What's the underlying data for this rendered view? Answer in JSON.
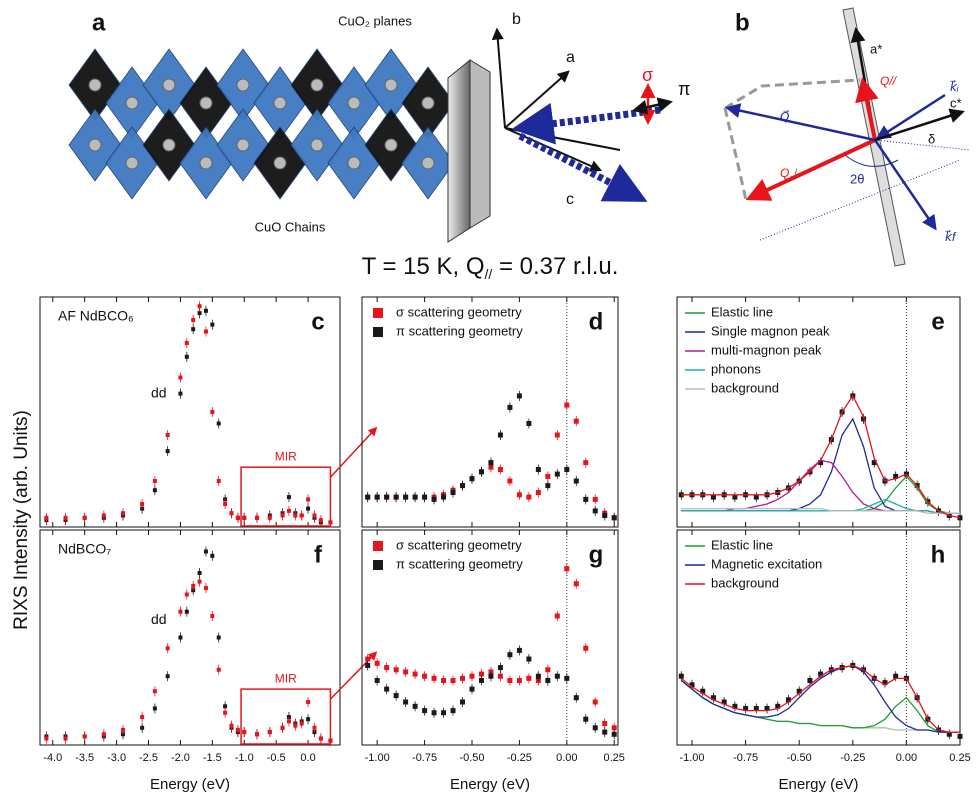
{
  "figure": {
    "title_parts": [
      "T = 15 K,   Q",
      "//",
      " = 0.37 r.l.u."
    ],
    "y_label": "RIXS Intensity (arb. Units)"
  },
  "diagram_a": {
    "panel_label": "a",
    "labels": {
      "planes": "CuO₂ planes",
      "chains": "CuO Chains",
      "b": "b",
      "a": "a",
      "c": "c",
      "sigma": "σ",
      "pi": "π"
    }
  },
  "diagram_b": {
    "panel_label": "b",
    "labels": {
      "a_star": "a*",
      "q_par": "Q//",
      "q_perp": "Q⊥",
      "q": "Q⃗",
      "k_i": "k⃗ᵢ",
      "k_f": "k⃗f",
      "c_star": "c*",
      "delta": "δ",
      "two_theta": "2θ"
    }
  },
  "chart_data": [
    {
      "type": "line",
      "panel_label": "c",
      "label_text": "AF NdBCO₆",
      "peak_label": "dd",
      "box_label": "MIR",
      "xlim": [
        -4.2,
        0.5
      ],
      "xticks": [
        -4,
        -3.5,
        -3,
        -2.5,
        -2,
        -1.5,
        -1,
        -0.5,
        0
      ],
      "tick_labels": false,
      "ylim": [
        0,
        100
      ],
      "zero_line": false,
      "x": [
        -4.1,
        -3.8,
        -3.5,
        -3.2,
        -2.9,
        -2.6,
        -2.4,
        -2.2,
        -2.0,
        -1.9,
        -1.8,
        -1.7,
        -1.6,
        -1.5,
        -1.4,
        -1.3,
        -1.2,
        -1.1,
        -1.0,
        -0.8,
        -0.6,
        -0.4,
        -0.3,
        -0.2,
        -0.1,
        0.0,
        0.1,
        0.2,
        0.35
      ],
      "series": [
        {
          "color": "#1a1a1a",
          "marker": "square",
          "values": [
            3,
            3,
            4,
            4,
            5,
            8,
            16,
            33,
            58,
            74,
            86,
            93,
            94,
            88,
            45,
            12,
            6,
            4,
            4,
            4,
            5,
            6,
            13,
            6,
            5,
            8,
            4,
            2,
            2
          ]
        },
        {
          "color": "#e8141c",
          "marker": "square",
          "values": [
            4,
            4,
            4,
            5,
            6,
            10,
            20,
            40,
            65,
            80,
            90,
            96,
            85,
            50,
            20,
            10,
            6,
            4,
            4,
            4,
            4,
            5,
            7,
            5,
            5,
            12,
            5,
            3,
            2
          ]
        }
      ]
    },
    {
      "type": "line",
      "panel_label": "d",
      "legend": "upper left",
      "xlim": [
        -1.08,
        0.27
      ],
      "xticks": [
        -1,
        -0.75,
        -0.5,
        -0.25,
        0,
        0.25
      ],
      "tick_labels": false,
      "ylim": [
        0,
        100
      ],
      "zero_line": true,
      "x": [
        -1.05,
        -1,
        -0.95,
        -0.9,
        -0.85,
        -0.8,
        -0.75,
        -0.7,
        -0.65,
        -0.6,
        -0.55,
        -0.5,
        -0.45,
        -0.4,
        -0.35,
        -0.3,
        -0.25,
        -0.2,
        -0.15,
        -0.1,
        -0.05,
        0,
        0.05,
        0.1,
        0.15,
        0.2,
        0.25
      ],
      "series": [
        {
          "name": "σ scattering geometry",
          "color": "#e8141c",
          "marker": "square",
          "values": [
            13,
            13,
            13,
            13,
            13,
            13,
            13,
            13,
            14,
            16,
            18,
            21,
            24,
            26,
            25,
            20,
            14,
            13,
            15,
            22,
            40,
            53,
            46,
            28,
            12,
            6,
            4
          ]
        },
        {
          "name": "π scattering geometry",
          "color": "#1a1a1a",
          "marker": "square",
          "values": [
            13,
            13,
            13,
            13,
            13,
            13,
            13,
            12,
            13,
            15,
            18,
            21,
            24,
            28,
            40,
            52,
            57,
            45,
            25,
            18,
            23,
            25,
            20,
            12,
            7,
            5,
            4
          ]
        }
      ]
    },
    {
      "type": "line",
      "panel_label": "e",
      "legend": "upper left",
      "xlim": [
        -1.07,
        0.25
      ],
      "xticks": [
        -1,
        -0.75,
        -0.5,
        -0.25,
        0,
        0.25
      ],
      "tick_labels": false,
      "ylim": [
        0,
        100
      ],
      "zero_line": true,
      "x": [
        -1.05,
        -1,
        -0.95,
        -0.9,
        -0.85,
        -0.8,
        -0.75,
        -0.7,
        -0.65,
        -0.6,
        -0.55,
        -0.5,
        -0.45,
        -0.4,
        -0.35,
        -0.3,
        -0.25,
        -0.2,
        -0.15,
        -0.1,
        -0.05,
        0,
        0.05,
        0.1,
        0.15,
        0.2,
        0.25
      ],
      "series": [
        {
          "color": "#1a1a1a",
          "marker": "square",
          "values": [
            14,
            14,
            14,
            13,
            14,
            13,
            14,
            13,
            14,
            15,
            17,
            20,
            24,
            28,
            38,
            50,
            57,
            47,
            28,
            20,
            22,
            23,
            18,
            11,
            7,
            5,
            4
          ]
        },
        {
          "name": "Elastic line",
          "color": "#1ea032",
          "values": [
            7,
            7,
            7,
            7,
            7,
            7,
            7,
            7,
            7,
            7,
            7,
            7,
            7,
            7,
            7,
            7,
            7,
            7,
            8,
            11,
            17,
            22,
            17,
            10,
            7,
            6,
            6
          ]
        },
        {
          "name": "Single magnon peak",
          "color": "#1f2a9a",
          "values": [
            7,
            7,
            7,
            7,
            7,
            7,
            7,
            7,
            7,
            7,
            7,
            8,
            10,
            14,
            24,
            40,
            47,
            35,
            17,
            9,
            7,
            7,
            7,
            7,
            6,
            6,
            6
          ]
        },
        {
          "name": "multi-magnon peak",
          "color": "#b0189e",
          "values": [
            7,
            7,
            7,
            7,
            7,
            8,
            8,
            9,
            10,
            12,
            15,
            20,
            25,
            29,
            28,
            22,
            15,
            10,
            8,
            7,
            7,
            7,
            7,
            7,
            6,
            6,
            6
          ]
        },
        {
          "name": "phonons",
          "color": "#1fb5a8",
          "values": [
            7,
            7,
            7,
            7,
            7,
            7,
            7,
            7,
            7,
            7,
            7,
            7,
            7,
            7,
            7,
            7,
            7,
            8,
            10,
            12,
            10,
            8,
            7,
            7,
            6,
            6,
            6
          ]
        },
        {
          "name": "background",
          "color": "#bbbbbb",
          "values": [
            8,
            8,
            8,
            8,
            8,
            8,
            8,
            8,
            8,
            8,
            8,
            8,
            8,
            8,
            7,
            7,
            7,
            7,
            7,
            7,
            7,
            7,
            7,
            6,
            6,
            6,
            6
          ]
        },
        {
          "color": "#e8141c",
          "values": [
            14,
            14,
            14,
            14,
            14,
            14,
            14,
            14,
            14,
            15,
            17,
            20,
            24,
            29,
            38,
            50,
            57,
            48,
            30,
            20,
            21,
            23,
            18,
            11,
            7,
            5,
            4
          ]
        }
      ]
    },
    {
      "type": "line",
      "panel_label": "f",
      "label_text": "NdBCO₇",
      "peak_label": "dd",
      "box_label": "MIR",
      "x_label": "Energy (eV)",
      "xlim": [
        -4.2,
        0.5
      ],
      "xticks": [
        {
          "value": -4,
          "label": "-4.0"
        },
        -3.5,
        {
          "value": -3,
          "label": "-3.0"
        },
        -2.5,
        {
          "value": -2,
          "label": "-2.0"
        },
        -1.5,
        {
          "value": -1,
          "label": "-1.0"
        },
        -0.5,
        {
          "value": 0,
          "label": "0.0"
        }
      ],
      "tick_labels": true,
      "ylim": [
        0,
        100
      ],
      "zero_line": false,
      "x": [
        -4.1,
        -3.8,
        -3.5,
        -3.2,
        -2.9,
        -2.6,
        -2.4,
        -2.2,
        -2.0,
        -1.9,
        -1.8,
        -1.7,
        -1.6,
        -1.5,
        -1.4,
        -1.3,
        -1.2,
        -1.1,
        -1.0,
        -0.8,
        -0.6,
        -0.4,
        -0.3,
        -0.2,
        -0.1,
        0.0,
        0.1,
        0.2,
        0.35
      ],
      "series": [
        {
          "color": "#1a1a1a",
          "marker": "square",
          "values": [
            4,
            4,
            4,
            4,
            5,
            8,
            17,
            32,
            50,
            62,
            72,
            80,
            90,
            88,
            50,
            18,
            8,
            6,
            6,
            5,
            6,
            8,
            13,
            10,
            11,
            12,
            6,
            3,
            2
          ]
        },
        {
          "color": "#e8141c",
          "marker": "square",
          "values": [
            3,
            3,
            4,
            5,
            7,
            13,
            25,
            45,
            62,
            70,
            74,
            76,
            73,
            60,
            35,
            15,
            9,
            7,
            6,
            5,
            6,
            8,
            11,
            9,
            10,
            20,
            8,
            3,
            2
          ]
        }
      ]
    },
    {
      "type": "line",
      "panel_label": "g",
      "legend": "upper left",
      "x_label": "Energy (eV)",
      "xlim": [
        -1.08,
        0.27
      ],
      "xticks": [
        {
          "value": -1,
          "label": "-1.00"
        },
        -0.75,
        {
          "value": -0.5,
          "label": "-0.50"
        },
        -0.25,
        {
          "value": 0,
          "label": "0.00"
        },
        0.25
      ],
      "tick_labels": true,
      "ylim": [
        0,
        100
      ],
      "zero_line": true,
      "x": [
        -1.05,
        -1,
        -0.95,
        -0.9,
        -0.85,
        -0.8,
        -0.75,
        -0.7,
        -0.65,
        -0.6,
        -0.55,
        -0.5,
        -0.45,
        -0.4,
        -0.35,
        -0.3,
        -0.25,
        -0.2,
        -0.15,
        -0.1,
        -0.05,
        0,
        0.05,
        0.1,
        0.15,
        0.2,
        0.25
      ],
      "series": [
        {
          "name": "σ scattering geometry",
          "color": "#e8141c",
          "marker": "square",
          "values": [
            40,
            38,
            36,
            35,
            34,
            33,
            32,
            31,
            30,
            30,
            31,
            32,
            33,
            34,
            32,
            30,
            30,
            31,
            30,
            35,
            60,
            82,
            75,
            45,
            20,
            10,
            8
          ]
        },
        {
          "name": "π scattering geometry",
          "color": "#1a1a1a",
          "marker": "square",
          "values": [
            37,
            30,
            26,
            23,
            20,
            18,
            16,
            15,
            15,
            16,
            20,
            26,
            30,
            32,
            36,
            42,
            44,
            40,
            32,
            30,
            32,
            31,
            22,
            12,
            8,
            6,
            5
          ]
        }
      ]
    },
    {
      "type": "line",
      "panel_label": "h",
      "legend": "upper left",
      "x_label": "Energy (eV)",
      "xlim": [
        -1.07,
        0.25
      ],
      "xticks": [
        {
          "value": -1,
          "label": "-1.00"
        },
        -0.75,
        {
          "value": -0.5,
          "label": "-0.50"
        },
        -0.25,
        {
          "value": 0,
          "label": "0.00"
        },
        0.25
      ],
      "tick_labels": true,
      "ylim": [
        0,
        100
      ],
      "zero_line": true,
      "x": [
        -1.05,
        -1,
        -0.95,
        -0.9,
        -0.85,
        -0.8,
        -0.75,
        -0.7,
        -0.65,
        -0.6,
        -0.55,
        -0.5,
        -0.45,
        -0.4,
        -0.35,
        -0.3,
        -0.25,
        -0.2,
        -0.15,
        -0.1,
        -0.05,
        0,
        0.05,
        0.1,
        0.15,
        0.2,
        0.25
      ],
      "series": [
        {
          "color": "#1a1a1a",
          "marker": "square",
          "values": [
            32,
            28,
            25,
            22,
            20,
            18,
            17,
            17,
            17,
            18,
            21,
            25,
            30,
            33,
            35,
            36,
            37,
            35,
            31,
            29,
            32,
            31,
            22,
            12,
            7,
            5,
            4
          ]
        },
        {
          "color": "#9cc9a8",
          "values": [
            30,
            26,
            22,
            19,
            17,
            15,
            14,
            13,
            12,
            11,
            11,
            10,
            10,
            9,
            9,
            9,
            8,
            8,
            8,
            8,
            7,
            7,
            7,
            7,
            6,
            6,
            6
          ]
        },
        {
          "name": "Elastic line",
          "color": "#1ea032",
          "values": [
            30,
            26,
            22,
            19,
            17,
            15,
            14,
            13,
            12,
            11,
            11,
            10,
            10,
            9,
            9,
            9,
            8,
            8,
            9,
            12,
            18,
            22,
            16,
            9,
            6,
            6,
            6
          ]
        },
        {
          "name": "Magnetic excitation",
          "color": "#1f2a9a",
          "values": [
            30,
            26,
            22,
            19,
            17,
            15,
            14,
            13,
            13,
            14,
            17,
            22,
            27,
            31,
            34,
            36,
            37,
            34,
            28,
            20,
            13,
            9,
            7,
            7,
            6,
            6,
            6
          ]
        },
        {
          "name": "background",
          "color": "#e8141c",
          "values": [
            31,
            27,
            24,
            21,
            19,
            17,
            16,
            16,
            16,
            17,
            20,
            24,
            28,
            32,
            35,
            36,
            37,
            35,
            31,
            28,
            31,
            31,
            22,
            12,
            7,
            6,
            6
          ]
        }
      ]
    }
  ]
}
